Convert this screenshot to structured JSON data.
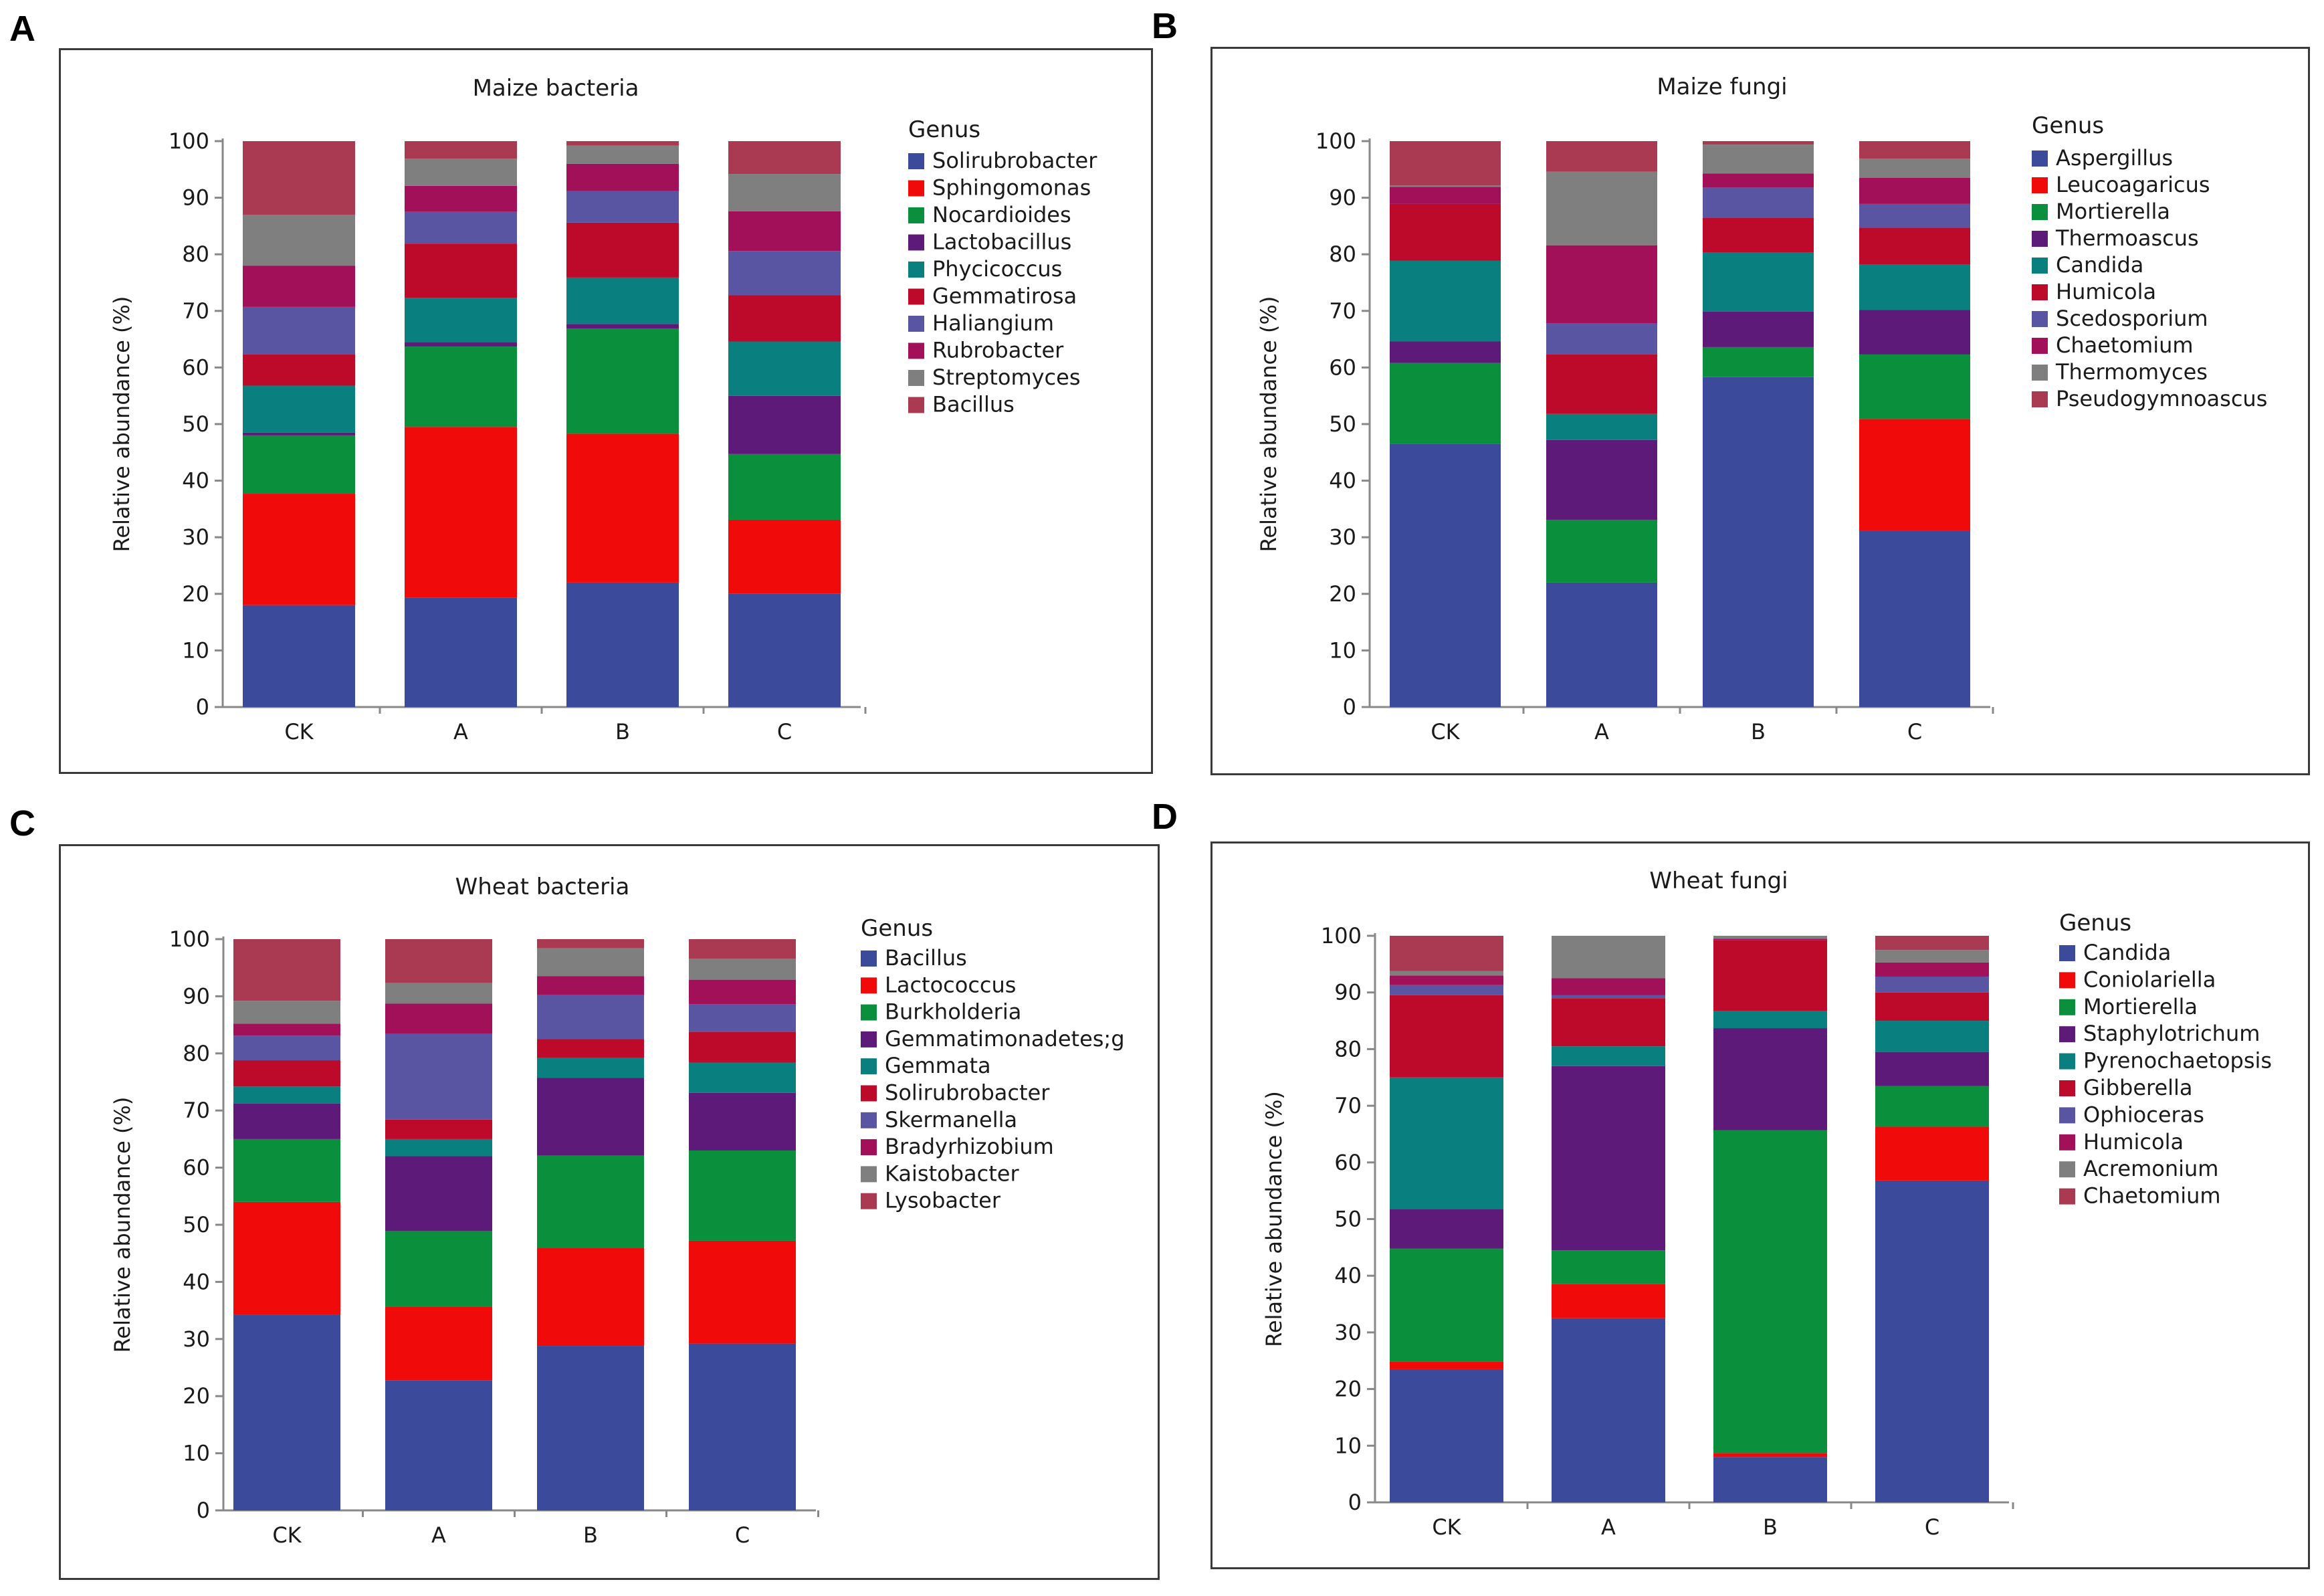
{
  "chart_data": [
    {
      "type": "bar",
      "stacked": true,
      "panel_label": "A",
      "title": "Maize bacteria",
      "xlabel": "",
      "ylabel": "Relative abundance (%)",
      "ylim": [
        0,
        100
      ],
      "yticks": [
        "0",
        "10",
        "20",
        "30",
        "40",
        "50",
        "60",
        "70",
        "80",
        "90",
        "100"
      ],
      "categories": [
        "CK",
        "A",
        "B",
        "C"
      ],
      "legend_title": "Genus",
      "series": [
        {
          "name": "Solirubrobacter",
          "color": "#3b4a9a",
          "values": [
            18,
            19.3,
            22,
            20
          ]
        },
        {
          "name": "Sphingomonas",
          "color": "#f00a0a",
          "values": [
            19.7,
            30.2,
            26.3,
            13.1
          ]
        },
        {
          "name": "Nocardioides",
          "color": "#0a8f3c",
          "values": [
            10.3,
            14.2,
            18.6,
            11.6
          ]
        },
        {
          "name": "Lactobacillus",
          "color": "#5e1a78",
          "values": [
            0.5,
            0.8,
            0.8,
            10.3
          ]
        },
        {
          "name": "Phycicoccus",
          "color": "#0a7f7f",
          "values": [
            8.3,
            7.8,
            8.2,
            9.6
          ]
        },
        {
          "name": "Gemmatirosa",
          "color": "#bd0a2a",
          "values": [
            5.5,
            9.6,
            9.7,
            8.2
          ]
        },
        {
          "name": "Haliangium",
          "color": "#5a55a3",
          "values": [
            8.4,
            5.6,
            5.6,
            7.8
          ]
        },
        {
          "name": "Rubrobacter",
          "color": "#a3105a",
          "values": [
            7.3,
            4.6,
            4.8,
            7.0
          ]
        },
        {
          "name": "Streptomyces",
          "color": "#7f7f7f",
          "values": [
            9.0,
            4.8,
            3.2,
            6.6
          ]
        },
        {
          "name": "Bacillus",
          "color": "#aa3a52",
          "values": [
            13.0,
            3.1,
            0.8,
            5.8
          ]
        }
      ]
    },
    {
      "type": "bar",
      "stacked": true,
      "panel_label": "B",
      "title": "Maize fungi",
      "xlabel": "",
      "ylabel": "Relative abundance (%)",
      "ylim": [
        0,
        100
      ],
      "yticks": [
        "0",
        "10",
        "20",
        "30",
        "40",
        "50",
        "60",
        "70",
        "80",
        "90",
        "100"
      ],
      "categories": [
        "CK",
        "A",
        "B",
        "C"
      ],
      "legend_title": "Genus",
      "series": [
        {
          "name": "Aspergillus",
          "color": "#3b4a9a",
          "values": [
            46.5,
            22,
            58.3,
            31.2
          ]
        },
        {
          "name": "Leucoagaricus",
          "color": "#f00a0a",
          "values": [
            0,
            0,
            0,
            19.7
          ]
        },
        {
          "name": "Mortierella",
          "color": "#0a8f3c",
          "values": [
            14.3,
            11.1,
            5.3,
            11.4
          ]
        },
        {
          "name": "Thermoascus",
          "color": "#5e1a78",
          "values": [
            3.8,
            14.1,
            6.3,
            7.9
          ]
        },
        {
          "name": "Candida",
          "color": "#0a7f7f",
          "values": [
            14.3,
            4.6,
            10.4,
            8.0
          ]
        },
        {
          "name": "Humicola",
          "color": "#bd0a2a",
          "values": [
            10.0,
            10.5,
            6.2,
            6.5
          ]
        },
        {
          "name": "Scedosporium",
          "color": "#5a55a3",
          "values": [
            0,
            5.5,
            5.3,
            4.2
          ]
        },
        {
          "name": "Chaetomium",
          "color": "#a3105a",
          "values": [
            3.0,
            13.8,
            2.5,
            4.6
          ]
        },
        {
          "name": "Thermomyces",
          "color": "#7f7f7f",
          "values": [
            0.3,
            13.0,
            5.1,
            3.4
          ]
        },
        {
          "name": "Pseudogymnoascus",
          "color": "#aa3a52",
          "values": [
            7.8,
            5.4,
            0.6,
            3.1
          ]
        }
      ]
    },
    {
      "type": "bar",
      "stacked": true,
      "panel_label": "C",
      "title": "Wheat bacteria",
      "xlabel": "",
      "ylabel": "Relative abundance (%)",
      "ylim": [
        0,
        100
      ],
      "yticks": [
        "0",
        "10",
        "20",
        "30",
        "40",
        "50",
        "60",
        "70",
        "80",
        "90",
        "100"
      ],
      "categories": [
        "CK",
        "A",
        "B",
        "C"
      ],
      "legend_title": "Genus",
      "series": [
        {
          "name": "Bacillus",
          "color": "#3b4a9a",
          "values": [
            34.2,
            22.8,
            28.8,
            29.2
          ]
        },
        {
          "name": "Lactococcus",
          "color": "#f00a0a",
          "values": [
            19.8,
            12.8,
            17.1,
            18.0
          ]
        },
        {
          "name": "Burkholderia",
          "color": "#0a8f3c",
          "values": [
            11.0,
            13.3,
            16.2,
            15.8
          ]
        },
        {
          "name": "Gemmatimonadetes;g",
          "color": "#5e1a78",
          "values": [
            6.2,
            13.1,
            13.6,
            10.1
          ]
        },
        {
          "name": "Gemmata",
          "color": "#0a7f7f",
          "values": [
            3.0,
            3.0,
            3.5,
            5.3
          ]
        },
        {
          "name": "Solirubrobacter",
          "color": "#bd0a2a",
          "values": [
            4.6,
            3.4,
            3.3,
            5.4
          ]
        },
        {
          "name": "Skermanella",
          "color": "#5a55a3",
          "values": [
            4.3,
            15.0,
            7.7,
            4.8
          ]
        },
        {
          "name": "Bradyrhizobium",
          "color": "#a3105a",
          "values": [
            2.1,
            5.3,
            3.3,
            4.3
          ]
        },
        {
          "name": "Kaistobacter",
          "color": "#7f7f7f",
          "values": [
            4.0,
            3.6,
            4.9,
            3.7
          ]
        },
        {
          "name": "Lysobacter",
          "color": "#aa3a52",
          "values": [
            10.8,
            7.7,
            1.6,
            3.4
          ]
        }
      ]
    },
    {
      "type": "bar",
      "stacked": true,
      "panel_label": "D",
      "title": "Wheat fungi",
      "xlabel": "",
      "ylabel": "Relative abundance (%)",
      "ylim": [
        0,
        100
      ],
      "yticks": [
        "0",
        "10",
        "20",
        "30",
        "40",
        "50",
        "60",
        "70",
        "80",
        "90",
        "100"
      ],
      "categories": [
        "CK",
        "A",
        "B",
        "C"
      ],
      "legend_title": "Genus",
      "series": [
        {
          "name": "Candida",
          "color": "#3b4a9a",
          "values": [
            23.5,
            32.5,
            8.0,
            56.8
          ]
        },
        {
          "name": "Coniolariella",
          "color": "#f00a0a",
          "values": [
            1.3,
            6.0,
            0.7,
            9.5
          ]
        },
        {
          "name": "Mortierella",
          "color": "#0a8f3c",
          "values": [
            20.0,
            6.0,
            57.0,
            7.2
          ]
        },
        {
          "name": "Staphylotrichum",
          "color": "#5e1a78",
          "values": [
            7.0,
            32.5,
            18.0,
            6.0
          ]
        },
        {
          "name": "Pyrenochaetopsis",
          "color": "#0a7f7f",
          "values": [
            23.2,
            3.5,
            3.0,
            5.5
          ]
        },
        {
          "name": "Gibberella",
          "color": "#bd0a2a",
          "values": [
            14.5,
            8.5,
            12.5,
            5.0
          ]
        },
        {
          "name": "Ophioceras",
          "color": "#5a55a3",
          "values": [
            1.8,
            0.5,
            0,
            2.8
          ]
        },
        {
          "name": "Humicola",
          "color": "#a3105a",
          "values": [
            1.7,
            3.0,
            0.3,
            2.5
          ]
        },
        {
          "name": "Acremonium",
          "color": "#7f7f7f",
          "values": [
            0.8,
            7.5,
            0.5,
            2.2
          ]
        },
        {
          "name": "Chaetomium",
          "color": "#aa3a52",
          "values": [
            6.2,
            0,
            0,
            2.5
          ]
        }
      ]
    }
  ]
}
